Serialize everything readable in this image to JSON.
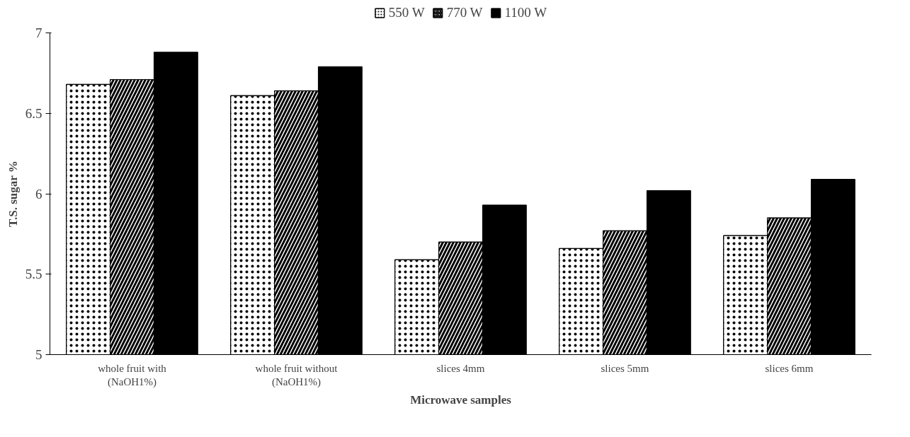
{
  "chart_data": {
    "type": "bar",
    "xlabel": "Microwave samples",
    "ylabel": "T.S. sugar %",
    "categories": [
      "whole fruit with\n(NaOH1%)",
      "whole fruit without\n(NaOH1%)",
      "slices 4mm",
      "slices 5mm",
      "slices 6mm"
    ],
    "series": [
      {
        "name": "550 W",
        "color": "#ffffff",
        "values": [
          6.68,
          6.61,
          5.59,
          5.66,
          5.74
        ]
      },
      {
        "name": "770 W",
        "color": "#ffffff",
        "values": [
          6.71,
          6.64,
          5.7,
          5.77,
          5.85
        ]
      },
      {
        "name": "1100 W",
        "color": "#000000",
        "values": [
          6.88,
          6.79,
          5.93,
          6.02,
          6.09
        ]
      }
    ],
    "ylim": [
      5,
      7
    ],
    "yticks": [
      5,
      5.5,
      6,
      6.5,
      7
    ],
    "grid": false,
    "legend": "top"
  }
}
